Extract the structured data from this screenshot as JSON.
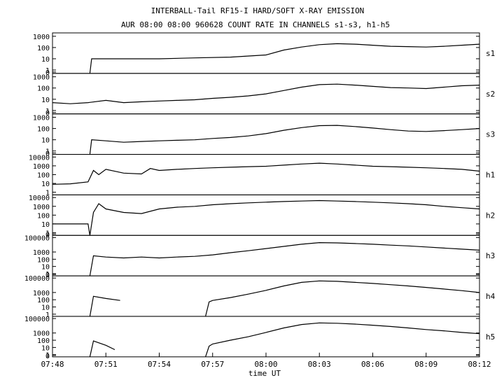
{
  "chart_data": {
    "type": "line",
    "title": "INTERBALL-Tail RF15-I HARD/SOFT X-RAY EMISSION",
    "subtitle": "AUR 08:00 08:00 960628  COUNT RATE IN CHANNELS s1-s3, h1-h5",
    "xlabel": "time UT",
    "x_ticks": [
      "07:48",
      "07:51",
      "07:54",
      "07:57",
      "08:00",
      "08:03",
      "08:06",
      "08:09",
      "08:12"
    ],
    "ylabel": "",
    "y_scale": "log",
    "grid": false,
    "legend": "none",
    "line_color": "#000000",
    "panels": [
      {
        "name": "s1",
        "yticks": [
          "1000",
          "100",
          "10",
          "1",
          "0"
        ],
        "ylim": [
          0.5,
          2000
        ],
        "series": [
          {
            "x": "07:48",
            "y": null
          },
          {
            "x": "07:50",
            "y": null
          },
          {
            "x": "07:50.1",
            "y": 0.5
          },
          {
            "x": "07:50.2",
            "y": 10
          },
          {
            "x": "07:52",
            "y": 10
          },
          {
            "x": "07:54",
            "y": 10
          },
          {
            "x": "07:56",
            "y": 12
          },
          {
            "x": "07:58",
            "y": 14
          },
          {
            "x": "08:00",
            "y": 22
          },
          {
            "x": "08:01",
            "y": 60
          },
          {
            "x": "08:02",
            "y": 110
          },
          {
            "x": "08:03",
            "y": 180
          },
          {
            "x": "08:04",
            "y": 220
          },
          {
            "x": "08:05",
            "y": 200
          },
          {
            "x": "08:06",
            "y": 160
          },
          {
            "x": "08:07",
            "y": 130
          },
          {
            "x": "08:08",
            "y": 120
          },
          {
            "x": "08:09",
            "y": 110
          },
          {
            "x": "08:10",
            "y": 130
          },
          {
            "x": "08:11",
            "y": 160
          },
          {
            "x": "08:12",
            "y": 200
          }
        ]
      },
      {
        "name": "s2",
        "yticks": [
          "1000",
          "100",
          "10",
          "1",
          "0"
        ],
        "ylim": [
          0.5,
          2000
        ],
        "series": [
          {
            "x": "07:48",
            "y": 5
          },
          {
            "x": "07:49",
            "y": 4
          },
          {
            "x": "07:50",
            "y": 5
          },
          {
            "x": "07:51",
            "y": 8
          },
          {
            "x": "07:52",
            "y": 5
          },
          {
            "x": "07:53",
            "y": 6
          },
          {
            "x": "07:54",
            "y": 7
          },
          {
            "x": "07:55",
            "y": 8
          },
          {
            "x": "07:56",
            "y": 9
          },
          {
            "x": "07:57",
            "y": 12
          },
          {
            "x": "07:58",
            "y": 15
          },
          {
            "x": "07:59",
            "y": 20
          },
          {
            "x": "08:00",
            "y": 30
          },
          {
            "x": "08:01",
            "y": 60
          },
          {
            "x": "08:02",
            "y": 120
          },
          {
            "x": "08:03",
            "y": 200
          },
          {
            "x": "08:04",
            "y": 220
          },
          {
            "x": "08:05",
            "y": 180
          },
          {
            "x": "08:06",
            "y": 140
          },
          {
            "x": "08:07",
            "y": 110
          },
          {
            "x": "08:08",
            "y": 100
          },
          {
            "x": "08:09",
            "y": 90
          },
          {
            "x": "08:10",
            "y": 120
          },
          {
            "x": "08:11",
            "y": 160
          },
          {
            "x": "08:12",
            "y": 180
          }
        ]
      },
      {
        "name": "s3",
        "yticks": [
          "1000",
          "100",
          "10",
          "1",
          "0"
        ],
        "ylim": [
          0.5,
          2000
        ],
        "series": [
          {
            "x": "07:48",
            "y": null
          },
          {
            "x": "07:50",
            "y": null
          },
          {
            "x": "07:50.1",
            "y": 0.5
          },
          {
            "x": "07:50.2",
            "y": 10
          },
          {
            "x": "07:51",
            "y": 8
          },
          {
            "x": "07:52",
            "y": 6
          },
          {
            "x": "07:53",
            "y": 7
          },
          {
            "x": "07:54",
            "y": 8
          },
          {
            "x": "07:55",
            "y": 9
          },
          {
            "x": "07:56",
            "y": 10
          },
          {
            "x": "07:57",
            "y": 13
          },
          {
            "x": "07:58",
            "y": 16
          },
          {
            "x": "07:59",
            "y": 22
          },
          {
            "x": "08:00",
            "y": 35
          },
          {
            "x": "08:01",
            "y": 70
          },
          {
            "x": "08:02",
            "y": 120
          },
          {
            "x": "08:03",
            "y": 180
          },
          {
            "x": "08:04",
            "y": 190
          },
          {
            "x": "08:05",
            "y": 150
          },
          {
            "x": "08:06",
            "y": 110
          },
          {
            "x": "08:07",
            "y": 80
          },
          {
            "x": "08:08",
            "y": 60
          },
          {
            "x": "08:09",
            "y": 55
          },
          {
            "x": "08:10",
            "y": 65
          },
          {
            "x": "08:11",
            "y": 80
          },
          {
            "x": "08:12",
            "y": 100
          }
        ]
      },
      {
        "name": "h1",
        "yticks": [
          "10000",
          "1000",
          "100",
          "10",
          "1"
        ],
        "ylim": [
          0.5,
          20000
        ],
        "series": [
          {
            "x": "07:48",
            "y": 8
          },
          {
            "x": "07:49",
            "y": 9
          },
          {
            "x": "07:50",
            "y": 15
          },
          {
            "x": "07:50.3",
            "y": 300
          },
          {
            "x": "07:50.6",
            "y": 100
          },
          {
            "x": "07:51",
            "y": 400
          },
          {
            "x": "07:52",
            "y": 150
          },
          {
            "x": "07:53",
            "y": 120
          },
          {
            "x": "07:53.5",
            "y": 500
          },
          {
            "x": "07:54",
            "y": 300
          },
          {
            "x": "07:55",
            "y": 400
          },
          {
            "x": "07:56",
            "y": 500
          },
          {
            "x": "07:57",
            "y": 600
          },
          {
            "x": "07:58",
            "y": 700
          },
          {
            "x": "07:59",
            "y": 800
          },
          {
            "x": "08:00",
            "y": 900
          },
          {
            "x": "08:01",
            "y": 1200
          },
          {
            "x": "08:02",
            "y": 1600
          },
          {
            "x": "08:03",
            "y": 2000
          },
          {
            "x": "08:04",
            "y": 1600
          },
          {
            "x": "08:05",
            "y": 1200
          },
          {
            "x": "08:06",
            "y": 900
          },
          {
            "x": "08:07",
            "y": 800
          },
          {
            "x": "08:08",
            "y": 700
          },
          {
            "x": "08:09",
            "y": 600
          },
          {
            "x": "08:10",
            "y": 500
          },
          {
            "x": "08:11",
            "y": 400
          },
          {
            "x": "08:12",
            "y": 250
          }
        ]
      },
      {
        "name": "h2",
        "yticks": [
          "10000",
          "1000",
          "100",
          "10",
          "1",
          "0"
        ],
        "ylim": [
          0.5,
          20000
        ],
        "series": [
          {
            "x": "07:48",
            "y": 10
          },
          {
            "x": "07:49.5",
            "y": 10
          },
          {
            "x": "07:50",
            "y": 10
          },
          {
            "x": "07:50.1",
            "y": 0.5
          },
          {
            "x": "07:50.3",
            "y": 200
          },
          {
            "x": "07:50.6",
            "y": 2000
          },
          {
            "x": "07:51",
            "y": 500
          },
          {
            "x": "07:52",
            "y": 200
          },
          {
            "x": "07:53",
            "y": 150
          },
          {
            "x": "07:54",
            "y": 500
          },
          {
            "x": "07:55",
            "y": 800
          },
          {
            "x": "07:56",
            "y": 1000
          },
          {
            "x": "07:57",
            "y": 1500
          },
          {
            "x": "07:58",
            "y": 2000
          },
          {
            "x": "07:59",
            "y": 2500
          },
          {
            "x": "08:00",
            "y": 3000
          },
          {
            "x": "08:01",
            "y": 3500
          },
          {
            "x": "08:02",
            "y": 4000
          },
          {
            "x": "08:03",
            "y": 4500
          },
          {
            "x": "08:04",
            "y": 4000
          },
          {
            "x": "08:05",
            "y": 3500
          },
          {
            "x": "08:06",
            "y": 3000
          },
          {
            "x": "08:07",
            "y": 2500
          },
          {
            "x": "08:08",
            "y": 2000
          },
          {
            "x": "08:09",
            "y": 1500
          },
          {
            "x": "08:10",
            "y": 1000
          },
          {
            "x": "08:11",
            "y": 700
          },
          {
            "x": "08:12",
            "y": 500
          }
        ]
      },
      {
        "name": "h3",
        "yticks": [
          "100000",
          "1000",
          "100",
          "10",
          "1",
          "0"
        ],
        "ylim": [
          0.5,
          200000
        ],
        "series": [
          {
            "x": "07:48",
            "y": null
          },
          {
            "x": "07:50",
            "y": null
          },
          {
            "x": "07:50.1",
            "y": 0.5
          },
          {
            "x": "07:50.3",
            "y": 300
          },
          {
            "x": "07:51",
            "y": 200
          },
          {
            "x": "07:52",
            "y": 150
          },
          {
            "x": "07:53",
            "y": 200
          },
          {
            "x": "07:54",
            "y": 150
          },
          {
            "x": "07:55",
            "y": 200
          },
          {
            "x": "07:56",
            "y": 250
          },
          {
            "x": "07:57",
            "y": 400
          },
          {
            "x": "07:58",
            "y": 800
          },
          {
            "x": "07:59",
            "y": 1500
          },
          {
            "x": "08:00",
            "y": 3000
          },
          {
            "x": "08:01",
            "y": 6000
          },
          {
            "x": "08:02",
            "y": 12000
          },
          {
            "x": "08:03",
            "y": 20000
          },
          {
            "x": "08:04",
            "y": 18000
          },
          {
            "x": "08:05",
            "y": 15000
          },
          {
            "x": "08:06",
            "y": 12000
          },
          {
            "x": "08:07",
            "y": 9000
          },
          {
            "x": "08:08",
            "y": 7000
          },
          {
            "x": "08:09",
            "y": 5000
          },
          {
            "x": "08:10",
            "y": 3500
          },
          {
            "x": "08:11",
            "y": 2500
          },
          {
            "x": "08:12",
            "y": 1800
          }
        ]
      },
      {
        "name": "h4",
        "yticks": [
          "100000",
          "1000",
          "100",
          "10",
          "1"
        ],
        "ylim": [
          0.5,
          200000
        ],
        "series": [
          {
            "x": "07:48",
            "y": null
          },
          {
            "x": "07:50",
            "y": null
          },
          {
            "x": "07:50.1",
            "y": 0.5
          },
          {
            "x": "07:50.3",
            "y": 300
          },
          {
            "x": "07:51",
            "y": 150
          },
          {
            "x": "07:51.8",
            "y": 80
          },
          {
            "x": "07:52",
            "y": null
          },
          {
            "x": "07:56.5",
            "y": null
          },
          {
            "x": "07:56.6",
            "y": 0.5
          },
          {
            "x": "07:56.8",
            "y": 50
          },
          {
            "x": "07:57",
            "y": 80
          },
          {
            "x": "07:58",
            "y": 200
          },
          {
            "x": "07:59",
            "y": 600
          },
          {
            "x": "08:00",
            "y": 2000
          },
          {
            "x": "08:01",
            "y": 8000
          },
          {
            "x": "08:02",
            "y": 25000
          },
          {
            "x": "08:03",
            "y": 40000
          },
          {
            "x": "08:04",
            "y": 35000
          },
          {
            "x": "08:05",
            "y": 25000
          },
          {
            "x": "08:06",
            "y": 18000
          },
          {
            "x": "08:07",
            "y": 12000
          },
          {
            "x": "08:08",
            "y": 8000
          },
          {
            "x": "08:09",
            "y": 5000
          },
          {
            "x": "08:10",
            "y": 3000
          },
          {
            "x": "08:11",
            "y": 1800
          },
          {
            "x": "08:12",
            "y": 1000
          }
        ]
      },
      {
        "name": "h5",
        "yticks": [
          "100000",
          "1000",
          "100",
          "10",
          "1",
          "0"
        ],
        "ylim": [
          0.5,
          200000
        ],
        "series": [
          {
            "x": "07:48",
            "y": null
          },
          {
            "x": "07:50",
            "y": null
          },
          {
            "x": "07:50.1",
            "y": 0.5
          },
          {
            "x": "07:50.3",
            "y": 80
          },
          {
            "x": "07:51",
            "y": 20
          },
          {
            "x": "07:51.5",
            "y": 5
          },
          {
            "x": "07:52",
            "y": null
          },
          {
            "x": "07:56.5",
            "y": null
          },
          {
            "x": "07:56.6",
            "y": 0.5
          },
          {
            "x": "07:56.8",
            "y": 15
          },
          {
            "x": "07:57",
            "y": 30
          },
          {
            "x": "07:58",
            "y": 100
          },
          {
            "x": "07:59",
            "y": 300
          },
          {
            "x": "08:00",
            "y": 1200
          },
          {
            "x": "08:01",
            "y": 5000
          },
          {
            "x": "08:02",
            "y": 15000
          },
          {
            "x": "08:03",
            "y": 25000
          },
          {
            "x": "08:04",
            "y": 22000
          },
          {
            "x": "08:05",
            "y": 17000
          },
          {
            "x": "08:06",
            "y": 12000
          },
          {
            "x": "08:07",
            "y": 8000
          },
          {
            "x": "08:08",
            "y": 5000
          },
          {
            "x": "08:09",
            "y": 3000
          },
          {
            "x": "08:10",
            "y": 2000
          },
          {
            "x": "08:11",
            "y": 1200
          },
          {
            "x": "08:12",
            "y": 800
          }
        ]
      }
    ]
  }
}
